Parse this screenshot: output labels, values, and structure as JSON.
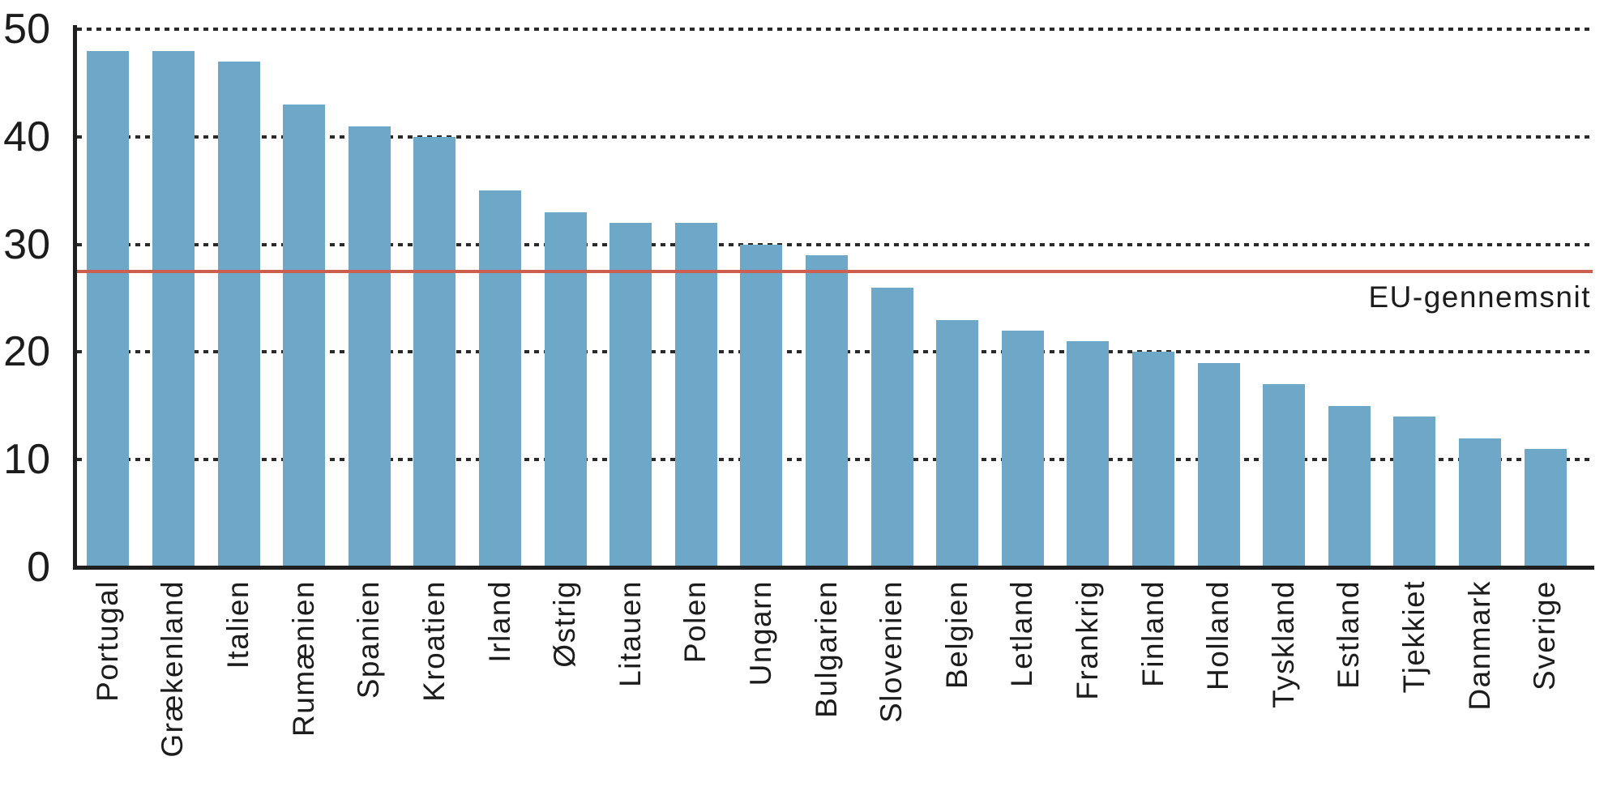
{
  "chart_data": {
    "type": "bar",
    "title": "",
    "xlabel": "",
    "ylabel": "",
    "categories": [
      "Portugal",
      "Grækenland",
      "Italien",
      "Rumænien",
      "Spanien",
      "Kroatien",
      "Irland",
      "Østrig",
      "Litauen",
      "Polen",
      "Ungarn",
      "Bulgarien",
      "Slovenien",
      "Belgien",
      "Letland",
      "Frankrig",
      "Finland",
      "Holland",
      "Tyskland",
      "Estland",
      "Tjekkiet",
      "Danmark",
      "Sverige"
    ],
    "values": [
      48,
      48,
      47,
      43,
      41,
      40,
      35,
      33,
      32,
      32,
      30,
      29,
      26,
      23,
      22,
      21,
      20,
      19,
      17,
      15,
      14,
      12,
      11
    ],
    "ylim": [
      0,
      50
    ],
    "y_ticks": [
      0,
      10,
      20,
      30,
      40,
      50
    ],
    "grid": "horizontal-dotted",
    "legend_position": "none",
    "bar_color": "#6da8c8",
    "axis_color": "#1f1f1f",
    "grid_color": "#2a2a2a",
    "reference_line": {
      "value": 27.5,
      "label": "EU-gennemsnit",
      "color": "#cc5f51"
    }
  }
}
